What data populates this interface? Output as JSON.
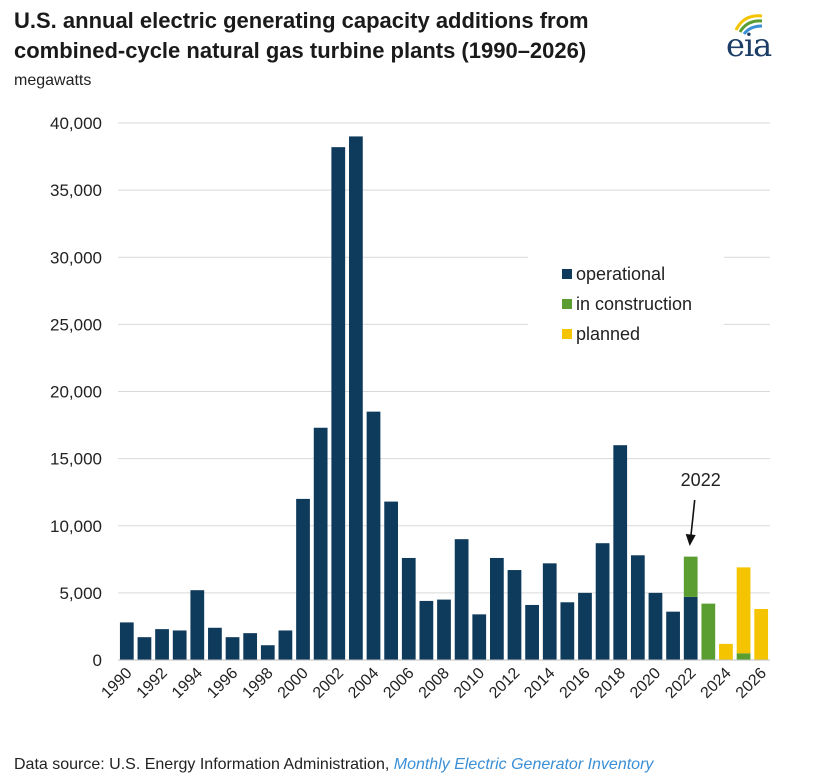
{
  "header": {
    "title_line1": "U.S. annual electric generating capacity additions from",
    "title_line2": "combined-cycle natural gas turbine plants (1990–2026)",
    "units": "megawatts",
    "logo_text": "eia"
  },
  "footer": {
    "source_prefix": "Data source: U.S. Energy Information Administration, ",
    "source_link": "Monthly Electric Generator Inventory"
  },
  "chart_data": {
    "type": "bar",
    "stacked": true,
    "title": "U.S. annual electric generating capacity additions from combined-cycle natural gas turbine plants (1990–2026)",
    "ylabel": "megawatts",
    "ylim": [
      0,
      40000
    ],
    "yticks": [
      0,
      5000,
      10000,
      15000,
      20000,
      25000,
      30000,
      35000,
      40000
    ],
    "ytick_labels": [
      "0",
      "5,000",
      "10,000",
      "15,000",
      "20,000",
      "25,000",
      "30,000",
      "35,000",
      "40,000"
    ],
    "categories": [
      "1990",
      "1991",
      "1992",
      "1993",
      "1994",
      "1995",
      "1996",
      "1997",
      "1998",
      "1999",
      "2000",
      "2001",
      "2002",
      "2003",
      "2004",
      "2005",
      "2006",
      "2007",
      "2008",
      "2009",
      "2010",
      "2011",
      "2012",
      "2013",
      "2014",
      "2015",
      "2016",
      "2017",
      "2018",
      "2019",
      "2020",
      "2021",
      "2022",
      "2023",
      "2024",
      "2025",
      "2026"
    ],
    "xtick_labels": [
      "1990",
      "1992",
      "1994",
      "1996",
      "1998",
      "2000",
      "2002",
      "2004",
      "2006",
      "2008",
      "2010",
      "2012",
      "2014",
      "2016",
      "2018",
      "2020",
      "2022",
      "2024",
      "2026"
    ],
    "series": [
      {
        "name": "operational",
        "color": "#0e3a5c",
        "values": [
          2800,
          1700,
          2300,
          2200,
          5200,
          2400,
          1700,
          2000,
          1100,
          2200,
          12000,
          17300,
          38200,
          39000,
          18500,
          11800,
          7600,
          4400,
          4500,
          9000,
          3400,
          7600,
          6700,
          4100,
          7200,
          4300,
          5000,
          8700,
          16000,
          7800,
          5000,
          3600,
          4700,
          0,
          0,
          0,
          0
        ]
      },
      {
        "name": "in construction",
        "color": "#5a9e32",
        "values": [
          0,
          0,
          0,
          0,
          0,
          0,
          0,
          0,
          0,
          0,
          0,
          0,
          0,
          0,
          0,
          0,
          0,
          0,
          0,
          0,
          0,
          0,
          0,
          0,
          0,
          0,
          0,
          0,
          0,
          0,
          0,
          0,
          3000,
          4200,
          0,
          500,
          0
        ]
      },
      {
        "name": "planned",
        "color": "#f5c400",
        "values": [
          0,
          0,
          0,
          0,
          0,
          0,
          0,
          0,
          0,
          0,
          0,
          0,
          0,
          0,
          0,
          0,
          0,
          0,
          0,
          0,
          0,
          0,
          0,
          0,
          0,
          0,
          0,
          0,
          0,
          0,
          0,
          0,
          0,
          0,
          1200,
          6400,
          3800
        ]
      }
    ],
    "annotation": {
      "label": "2022",
      "category": "2022"
    },
    "legend_position": "center-right",
    "grid": true
  }
}
